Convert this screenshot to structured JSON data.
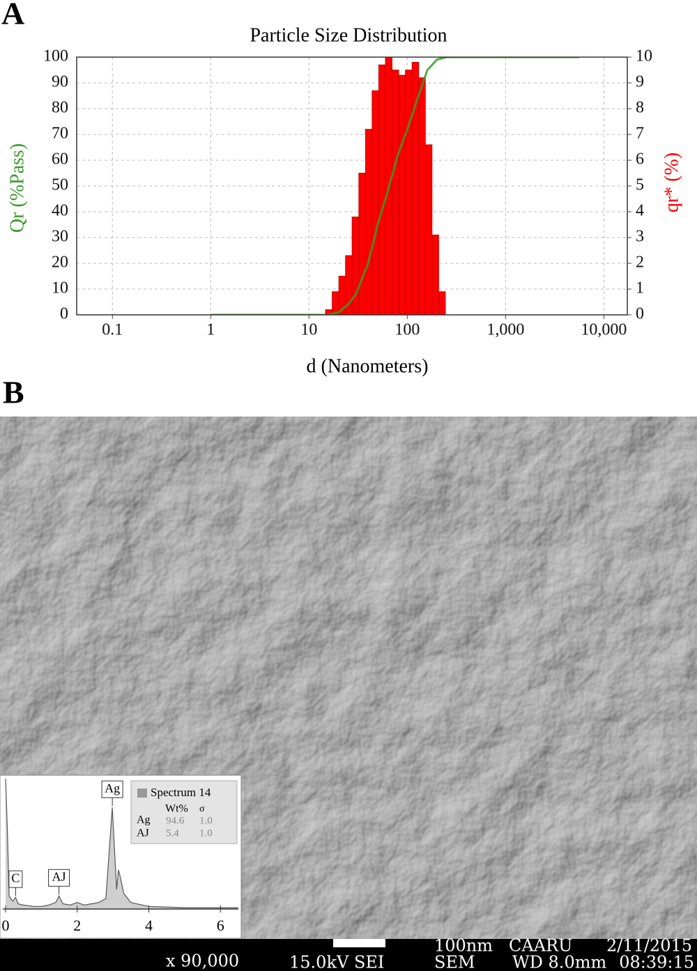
{
  "panel_labels": [
    "A",
    "B"
  ],
  "chart_data": [
    {
      "type": "histogram",
      "title": "Particle Size Distribution",
      "xlabel": "d (Nanometers)",
      "ylabel": "Qr (%Pass)",
      "y2label": "qr* (%)",
      "xscale": "log",
      "xlim": [
        0.0433,
        17300
      ],
      "xticks": [
        0.1,
        1,
        10,
        100,
        {
          "value": 1000,
          "label": "1,000"
        },
        {
          "value": 10000,
          "label": "10,000"
        }
      ],
      "ylim": [
        0,
        100
      ],
      "yticks": [
        0,
        10,
        20,
        30,
        40,
        50,
        60,
        70,
        80,
        90,
        100
      ],
      "y2lim": [
        0,
        10
      ],
      "y2ticks": [
        0,
        1,
        2,
        3,
        4,
        5,
        6,
        7,
        8,
        9,
        10
      ],
      "grid": true,
      "bins": [
        14.7,
        17.2,
        20.1,
        23.5,
        27.4,
        32.1,
        37.5,
        43.8,
        51.2,
        59.9,
        70.0,
        81.8,
        95.6,
        111.8,
        130.7,
        152.8,
        178.6,
        208.8,
        244.1
      ],
      "values": [
        0.2,
        0.9,
        1.5,
        2.3,
        3.8,
        5.5,
        7.2,
        8.7,
        9.7,
        10.0,
        9.5,
        9.3,
        9.5,
        9.8,
        9.2,
        6.6,
        3.1,
        0.9
      ],
      "axis": "y2",
      "color": "#ff0000",
      "line": {
        "x": [
          1,
          10,
          15,
          20,
          25,
          30,
          40,
          50,
          60,
          80,
          100,
          130,
          160,
          200,
          250,
          1000,
          5600
        ],
        "values": [
          0,
          0,
          0,
          1,
          4,
          8,
          20,
          35,
          45,
          62,
          72,
          85,
          95,
          99,
          100,
          100,
          100
        ],
        "color": "#3a9a2a"
      }
    },
    {
      "type": "line",
      "xlim": [
        0,
        6.5
      ],
      "xticks": [
        0,
        2,
        4,
        6
      ],
      "ylim": [
        0,
        100
      ],
      "x": [
        0,
        0.05,
        0.1,
        0.2,
        0.28,
        0.35,
        0.5,
        0.8,
        1.0,
        1.2,
        1.4,
        1.49,
        1.6,
        1.8,
        2.0,
        2.2,
        2.4,
        2.6,
        2.8,
        2.98,
        3.1,
        3.15,
        3.2,
        3.3,
        3.5,
        4,
        5,
        6,
        6.5
      ],
      "values": [
        100,
        60,
        10,
        6,
        9,
        4,
        3,
        2,
        2,
        3,
        5,
        10,
        4,
        3,
        5,
        3,
        4,
        5,
        8,
        78,
        15,
        30,
        25,
        12,
        5,
        2,
        1,
        1,
        1
      ],
      "color": "#999999",
      "annotations": [
        {
          "text": "C",
          "x": 0.28
        },
        {
          "text": "AJ",
          "x": 1.49
        },
        {
          "text": "Ag",
          "x": 2.98
        }
      ],
      "legend_title": "Spectrum 14",
      "table": {
        "header": [
          "Wt%",
          "σ"
        ],
        "rows": [
          [
            "Ag",
            "94.6",
            "1.0"
          ],
          [
            "AJ",
            "5.4",
            "1.0"
          ]
        ]
      }
    }
  ],
  "sem_info": {
    "magnification": "x 90,000",
    "voltage": "15.0kV SEI",
    "scale": "100nm",
    "mode": "SEM",
    "lab": "CAARU",
    "working_distance": "WD 8.0mm",
    "date": "2/11/2015",
    "time": "08:39:15"
  }
}
